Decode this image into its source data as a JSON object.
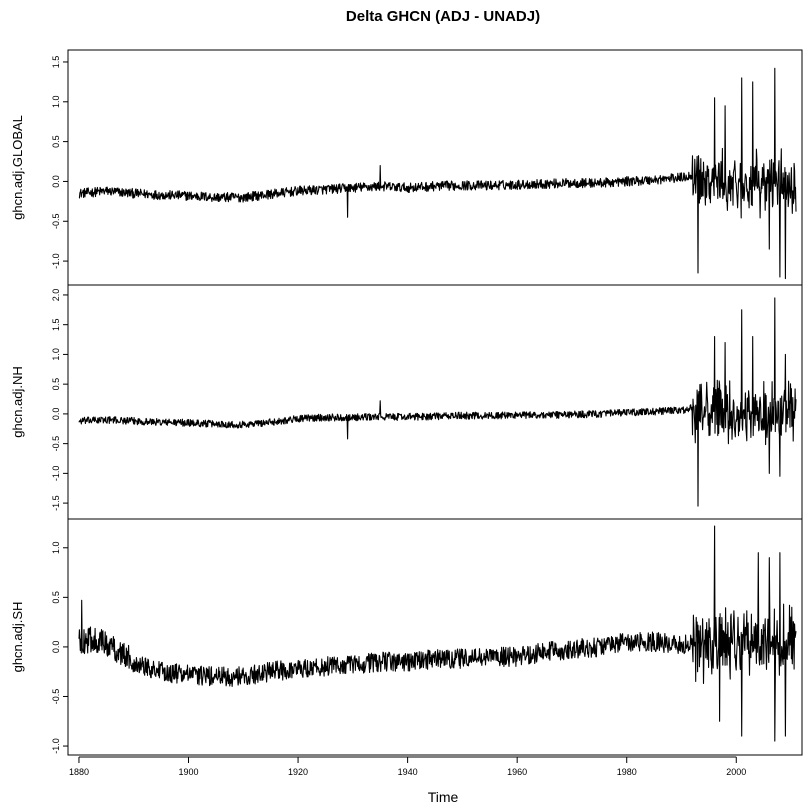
{
  "title": "Delta GHCN (ADJ - UNADJ)",
  "colors": {
    "line": "#000000",
    "frame": "#000000",
    "background": "#ffffff"
  },
  "chart_data": {
    "type": "line",
    "title": "Delta GHCN (ADJ - UNADJ)",
    "xlabel": "Time",
    "x_ticks": [
      "1880",
      "1900",
      "1920",
      "1940",
      "1960",
      "1980",
      "2000"
    ],
    "xlim": [
      1878,
      2012
    ],
    "panels": [
      {
        "name": "ghcn.adj.GLOBAL",
        "ylabel": "ghcn.adj.GLOBAL",
        "ylim": [
          -1.25,
          1.6
        ],
        "y_ticks": [
          "-1.0",
          "-0.5",
          "0.0",
          "0.5",
          "1.0",
          "1.5"
        ],
        "y_tick_values": [
          -1.0,
          -0.5,
          0.0,
          0.5,
          1.0,
          1.5
        ],
        "series_points": [
          [
            1880,
            -0.15
          ],
          [
            1885,
            -0.12
          ],
          [
            1890,
            -0.15
          ],
          [
            1895,
            -0.17
          ],
          [
            1900,
            -0.18
          ],
          [
            1905,
            -0.2
          ],
          [
            1910,
            -0.2
          ],
          [
            1915,
            -0.16
          ],
          [
            1920,
            -0.12
          ],
          [
            1925,
            -0.1
          ],
          [
            1930,
            -0.08
          ],
          [
            1935,
            -0.06
          ],
          [
            1940,
            -0.08
          ],
          [
            1945,
            -0.06
          ],
          [
            1950,
            -0.05
          ],
          [
            1955,
            -0.05
          ],
          [
            1960,
            -0.04
          ],
          [
            1965,
            -0.03
          ],
          [
            1970,
            -0.02
          ],
          [
            1975,
            -0.02
          ],
          [
            1980,
            0.0
          ],
          [
            1985,
            0.02
          ],
          [
            1990,
            0.05
          ],
          [
            1992,
            0.08
          ],
          [
            1995,
            0.0
          ],
          [
            2000,
            -0.05
          ],
          [
            2005,
            -0.03
          ],
          [
            2010,
            0.0
          ]
        ],
        "noise_base": 0.06,
        "noise_after_1992": 0.45,
        "spikes": [
          [
            1993,
            -1.15
          ],
          [
            1996,
            1.05
          ],
          [
            1998,
            0.95
          ],
          [
            2001,
            1.3
          ],
          [
            2003,
            1.25
          ],
          [
            2006,
            -0.85
          ],
          [
            2007,
            1.42
          ],
          [
            2008,
            -1.2
          ],
          [
            2009,
            -1.22
          ],
          [
            1935,
            0.2
          ],
          [
            1929,
            -0.45
          ]
        ]
      },
      {
        "name": "ghcn.adj.NH",
        "ylabel": "ghcn.adj.NH",
        "ylim": [
          -1.7,
          2.1
        ],
        "y_ticks": [
          "-1.5",
          "-1.0",
          "-0.5",
          "0.0",
          "0.5",
          "1.0",
          "1.5",
          "2.0"
        ],
        "y_tick_values": [
          -1.5,
          -1.0,
          -0.5,
          0.0,
          0.5,
          1.0,
          1.5,
          2.0
        ],
        "series_points": [
          [
            1880,
            -0.12
          ],
          [
            1885,
            -0.1
          ],
          [
            1890,
            -0.12
          ],
          [
            1895,
            -0.14
          ],
          [
            1900,
            -0.15
          ],
          [
            1905,
            -0.17
          ],
          [
            1910,
            -0.18
          ],
          [
            1915,
            -0.14
          ],
          [
            1920,
            -0.08
          ],
          [
            1925,
            -0.06
          ],
          [
            1930,
            -0.06
          ],
          [
            1935,
            -0.05
          ],
          [
            1940,
            -0.05
          ],
          [
            1945,
            -0.04
          ],
          [
            1950,
            -0.03
          ],
          [
            1955,
            -0.03
          ],
          [
            1960,
            -0.02
          ],
          [
            1965,
            -0.02
          ],
          [
            1970,
            -0.01
          ],
          [
            1975,
            0.0
          ],
          [
            1980,
            0.02
          ],
          [
            1985,
            0.04
          ],
          [
            1990,
            0.06
          ],
          [
            1992,
            0.1
          ],
          [
            1995,
            0.05
          ],
          [
            2000,
            -0.02
          ],
          [
            2005,
            0.0
          ],
          [
            2010,
            0.05
          ]
        ],
        "noise_base": 0.06,
        "noise_after_1992": 0.6,
        "spikes": [
          [
            1993,
            -1.55
          ],
          [
            1996,
            1.3
          ],
          [
            1998,
            1.2
          ],
          [
            2001,
            1.75
          ],
          [
            2003,
            1.3
          ],
          [
            2006,
            -1.0
          ],
          [
            2007,
            1.95
          ],
          [
            2008,
            -1.05
          ],
          [
            2009,
            1.0
          ],
          [
            1935,
            0.22
          ],
          [
            1929,
            -0.42
          ]
        ]
      },
      {
        "name": "ghcn.adj.SH",
        "ylabel": "ghcn.adj.SH",
        "ylim": [
          -1.05,
          1.25
        ],
        "y_ticks": [
          "-1.0",
          "-0.5",
          "0.0",
          "0.5",
          "1.0"
        ],
        "y_tick_values": [
          -1.0,
          -0.5,
          0.0,
          0.5,
          1.0
        ],
        "series_points": [
          [
            1880,
            0.05
          ],
          [
            1883,
            0.08
          ],
          [
            1886,
            0.0
          ],
          [
            1890,
            -0.15
          ],
          [
            1895,
            -0.25
          ],
          [
            1900,
            -0.28
          ],
          [
            1905,
            -0.3
          ],
          [
            1910,
            -0.3
          ],
          [
            1915,
            -0.25
          ],
          [
            1920,
            -0.22
          ],
          [
            1925,
            -0.2
          ],
          [
            1930,
            -0.18
          ],
          [
            1935,
            -0.15
          ],
          [
            1940,
            -0.15
          ],
          [
            1945,
            -0.12
          ],
          [
            1950,
            -0.12
          ],
          [
            1955,
            -0.1
          ],
          [
            1960,
            -0.1
          ],
          [
            1965,
            -0.05
          ],
          [
            1970,
            -0.02
          ],
          [
            1975,
            0.0
          ],
          [
            1980,
            0.05
          ],
          [
            1985,
            0.05
          ],
          [
            1990,
            0.02
          ],
          [
            1992,
            0.05
          ],
          [
            1995,
            0.0
          ],
          [
            2000,
            0.0
          ],
          [
            2005,
            0.0
          ],
          [
            2010,
            0.05
          ]
        ],
        "noise_base": 0.1,
        "noise_after_1992": 0.45,
        "spikes": [
          [
            1880.5,
            0.47
          ],
          [
            1996,
            1.22
          ],
          [
            1997,
            -0.75
          ],
          [
            2001,
            -0.9
          ],
          [
            2004,
            0.95
          ],
          [
            2006,
            0.9
          ],
          [
            2007,
            -0.95
          ],
          [
            2008,
            0.95
          ],
          [
            2009,
            -0.9
          ]
        ]
      }
    ]
  }
}
